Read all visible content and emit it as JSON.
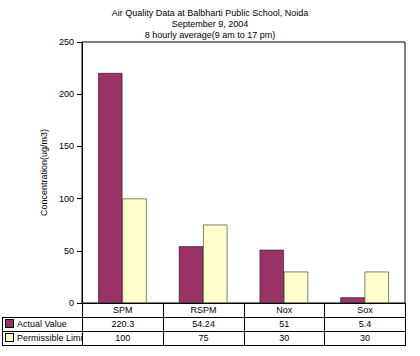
{
  "chart_data": {
    "type": "bar",
    "title": "Air Quality Data at Balbharti Public School, Noida\nSeptember 9, 2004\n8 hourly average(9 am to 17 pm)",
    "y_label": "Concentration(ug/m3)",
    "categories": [
      "SPM",
      "RSPM",
      "Nox",
      "Sox"
    ],
    "series": [
      {
        "name": "Actual Value",
        "color": "#993366",
        "values": [
          220.3,
          54.24,
          51,
          5.4
        ]
      },
      {
        "name": "Permissible Limit",
        "color": "#ffffcc",
        "values": [
          100,
          75,
          30,
          30
        ]
      }
    ],
    "ylim": [
      0,
      250
    ],
    "yticks": [
      0,
      50,
      100,
      150,
      200,
      250
    ],
    "grid": false
  }
}
